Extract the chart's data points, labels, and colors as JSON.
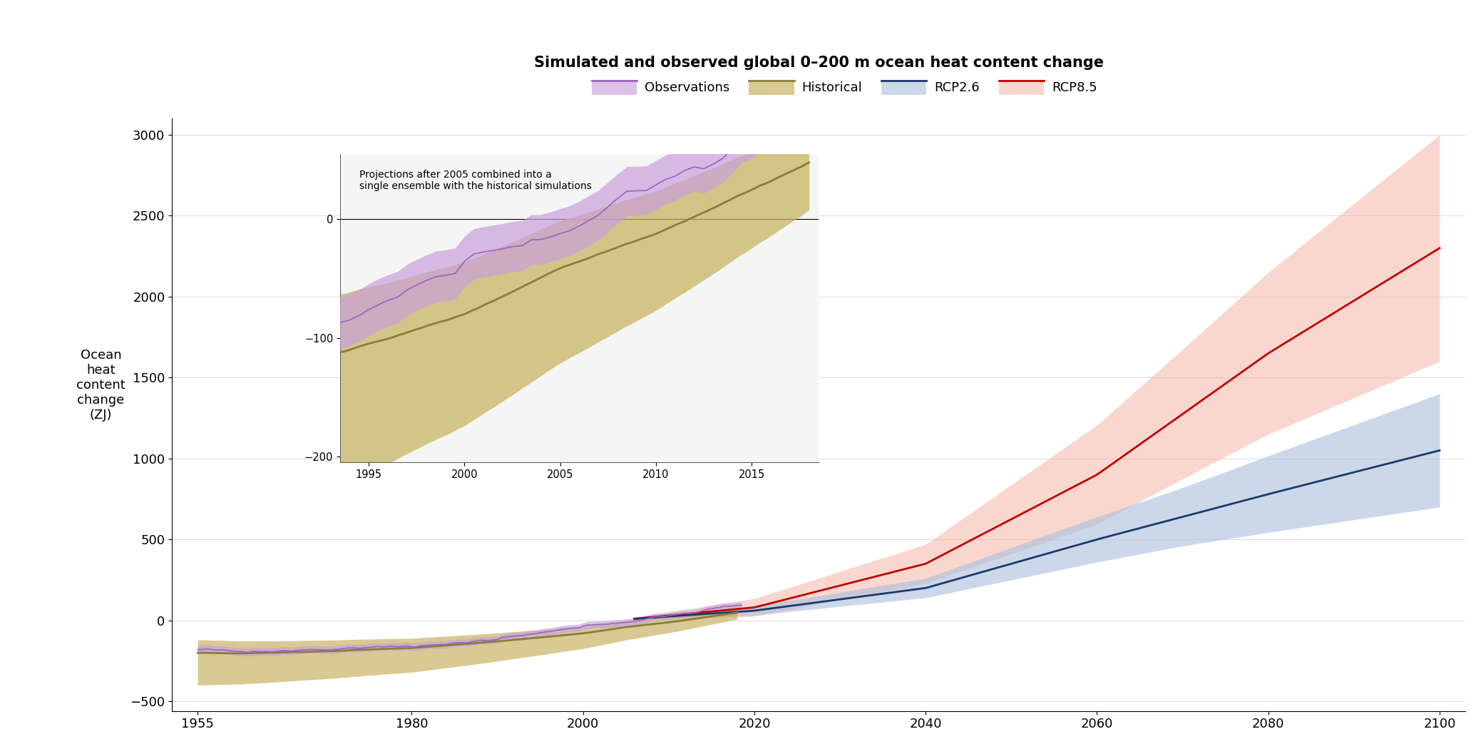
{
  "title": "Simulated and observed global 0–200 m ocean heat content change",
  "ylabel": "Ocean\nheat\ncontent\nchange\n(ZJ)",
  "xlabel_ticks": [
    1955,
    1980,
    2000,
    2020,
    2040,
    2060,
    2080,
    2100
  ],
  "yticks": [
    -500,
    0,
    500,
    1000,
    1500,
    2000,
    2500,
    3000
  ],
  "xlim": [
    1952,
    2103
  ],
  "ylim": [
    -560,
    3100
  ],
  "obs_fill": "#c9a0dc",
  "obs_line": "#9966bb",
  "hist_fill": "#c8b464",
  "hist_line": "#8b7d3a",
  "rcp26_fill": "#aabedd",
  "rcp26_line": "#1a3a6e",
  "rcp85_fill": "#f4b0a0",
  "rcp85_line": "#c00000",
  "inset_note": "Projections after 2005 combined into a\nsingle ensemble with the historical simulations",
  "legend_entries": [
    "Observations",
    "Historical",
    "RCP2.6",
    "RCP8.5"
  ],
  "bg_color": "#f5f5f5"
}
